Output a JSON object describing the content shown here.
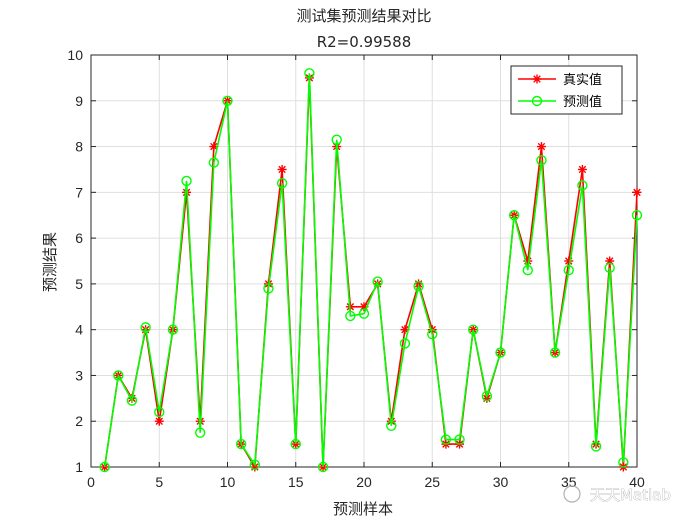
{
  "chart_data": {
    "type": "line",
    "title": "测试集预测结果对比",
    "subtitle": "R2=0.99588",
    "xlabel": "预测样本",
    "ylabel": "预测结果",
    "xlim": [
      0,
      40
    ],
    "ylim": [
      1,
      10
    ],
    "xticks": [
      0,
      5,
      10,
      15,
      20,
      25,
      30,
      35,
      40
    ],
    "yticks": [
      1,
      2,
      3,
      4,
      5,
      6,
      7,
      8,
      9,
      10
    ],
    "grid": true,
    "legend_position": "top-right",
    "x": [
      1,
      2,
      3,
      4,
      5,
      6,
      7,
      8,
      9,
      10,
      11,
      12,
      13,
      14,
      15,
      16,
      17,
      18,
      19,
      20,
      21,
      22,
      23,
      24,
      25,
      26,
      27,
      28,
      29,
      30,
      31,
      32,
      33,
      34,
      35,
      36,
      37,
      38,
      39,
      40
    ],
    "series": [
      {
        "name": "真实值",
        "color": "#ff0000",
        "marker": "asterisk",
        "values": [
          1,
          3,
          2.5,
          4,
          2,
          4,
          7,
          2,
          8,
          9,
          1.5,
          1,
          5,
          7.5,
          1.5,
          9.5,
          1,
          8,
          4.5,
          4.5,
          5,
          2,
          4,
          5,
          4,
          1.5,
          1.5,
          4,
          2.5,
          3.5,
          6.5,
          5.5,
          8,
          3.5,
          5.5,
          7.5,
          1.5,
          5.5,
          1,
          7
        ]
      },
      {
        "name": "预测值",
        "color": "#00ff00",
        "marker": "circle",
        "values": [
          1,
          3,
          2.45,
          4.05,
          2.2,
          4,
          7.25,
          1.75,
          7.65,
          9,
          1.5,
          1.05,
          4.9,
          7.2,
          1.5,
          9.6,
          1,
          8.15,
          4.3,
          4.35,
          5.05,
          1.9,
          3.7,
          4.95,
          3.9,
          1.6,
          1.6,
          4,
          2.55,
          3.5,
          6.5,
          5.3,
          7.7,
          3.5,
          5.3,
          7.15,
          1.45,
          5.35,
          1.1,
          6.5
        ]
      }
    ]
  },
  "watermark": "天天Matlab"
}
